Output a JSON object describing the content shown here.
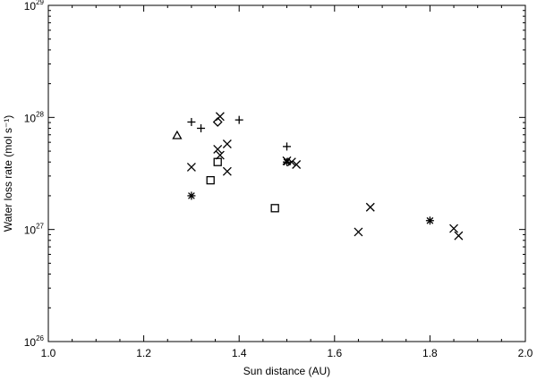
{
  "chart_data": {
    "type": "scatter",
    "title": "",
    "xlabel": "Sun distance (AU)",
    "ylabel": "Water loss rate (mol s⁻¹)",
    "xlim": [
      1.0,
      2.0
    ],
    "ylim": [
      1e+26,
      1e+29
    ],
    "yscale": "log",
    "grid": false,
    "x_ticks": [
      "1.0",
      "1.2",
      "1.4",
      "1.6",
      "1.8",
      "2.0"
    ],
    "y_ticks": [
      {
        "base": "10",
        "exp": "26"
      },
      {
        "base": "10",
        "exp": "27"
      },
      {
        "base": "10",
        "exp": "28"
      },
      {
        "base": "10",
        "exp": "29"
      }
    ],
    "series": [
      {
        "marker": "plus",
        "points": [
          [
            1.3,
            9.1e+27
          ],
          [
            1.32,
            8e+27
          ],
          [
            1.4,
            9.5e+27
          ],
          [
            1.5,
            5.5e+27
          ]
        ]
      },
      {
        "marker": "cross",
        "points": [
          [
            1.3,
            3.6e+27
          ],
          [
            1.36,
            1.02e+28
          ],
          [
            1.355,
            5.2e+27
          ],
          [
            1.36,
            4.6e+27
          ],
          [
            1.375,
            5.8e+27
          ],
          [
            1.375,
            3.3e+27
          ],
          [
            1.5,
            4.1e+27
          ],
          [
            1.51,
            4e+27
          ],
          [
            1.52,
            3.8e+27
          ],
          [
            1.65,
            9.5e+26
          ],
          [
            1.675,
            1.58e+27
          ],
          [
            1.85,
            1.02e+27
          ],
          [
            1.86,
            8.8e+26
          ]
        ]
      },
      {
        "marker": "asterisk",
        "points": [
          [
            1.3,
            2e+27
          ],
          [
            1.5,
            4e+27
          ],
          [
            1.8,
            1.2e+27
          ]
        ]
      },
      {
        "marker": "square",
        "points": [
          [
            1.34,
            2.75e+27
          ],
          [
            1.355,
            4e+27
          ],
          [
            1.475,
            1.55e+27
          ]
        ]
      },
      {
        "marker": "triangle",
        "points": [
          [
            1.27,
            6.9e+27
          ]
        ]
      },
      {
        "marker": "diamond",
        "points": [
          [
            1.355,
            9.1e+27
          ]
        ]
      }
    ]
  }
}
